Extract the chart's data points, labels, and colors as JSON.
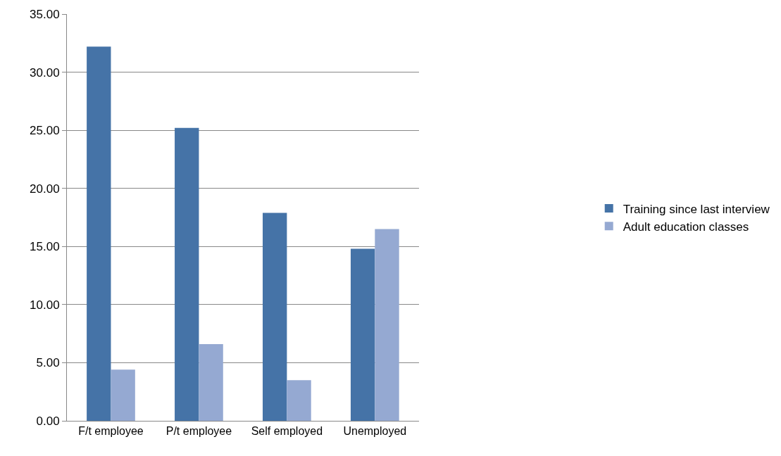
{
  "chart_data": {
    "type": "bar",
    "categories": [
      "F/t employee",
      "P/t employee",
      "Self employed",
      "Unemployed"
    ],
    "series": [
      {
        "name": "Training since last interview",
        "color": "#4573a7",
        "values": [
          32.2,
          25.2,
          17.9,
          14.8
        ]
      },
      {
        "name": "Adult education classes",
        "color": "#95a9d2",
        "values": [
          4.4,
          6.6,
          3.5,
          16.5
        ]
      }
    ],
    "ylim": [
      0,
      35
    ],
    "yticks": [
      {
        "value": 0,
        "label": "0.00"
      },
      {
        "value": 5,
        "label": "5.00"
      },
      {
        "value": 10,
        "label": "10.00"
      },
      {
        "value": 15,
        "label": "15.00"
      },
      {
        "value": 20,
        "label": "20.00"
      },
      {
        "value": 25,
        "label": "25.00"
      },
      {
        "value": 30,
        "label": "30.00"
      },
      {
        "value": 35,
        "label": "35.00"
      }
    ],
    "grid": "y",
    "legend": "right"
  }
}
